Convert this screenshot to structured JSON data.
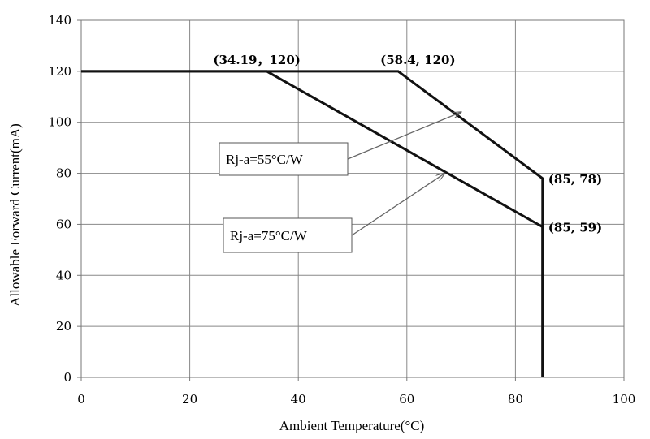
{
  "chart_data": {
    "type": "line",
    "xlabel": "Ambient Temperature(°C)",
    "ylabel": "Allowable Forward Current(mA)",
    "xlim": [
      0,
      100
    ],
    "ylim": [
      0,
      140
    ],
    "x_ticks": [
      "0",
      "20",
      "40",
      "60",
      "80",
      "100"
    ],
    "y_ticks": [
      "0",
      "20",
      "40",
      "60",
      "80",
      "100",
      "120",
      "140"
    ],
    "grid": true,
    "series": [
      {
        "name": "Rj-a=55°C/W",
        "points": [
          [
            0,
            120
          ],
          [
            58.4,
            120
          ],
          [
            85,
            78
          ],
          [
            85,
            0
          ]
        ]
      },
      {
        "name": "Rj-a=75°C/W",
        "points": [
          [
            0,
            120
          ],
          [
            34.19,
            120
          ],
          [
            85,
            59
          ],
          [
            85,
            0
          ]
        ]
      }
    ],
    "point_labels": [
      {
        "text": "(34.19，120)",
        "x": 34.19,
        "y": 120
      },
      {
        "text": "(58.4, 120)",
        "x": 58.4,
        "y": 120
      },
      {
        "text": "(85, 78)",
        "x": 85,
        "y": 78
      },
      {
        "text": "(85, 59)",
        "x": 85,
        "y": 59
      }
    ],
    "annotations": [
      {
        "text": "Rj-a=55°C/W",
        "arrow_to": [
          70,
          104
        ]
      },
      {
        "text": "Rj-a=75°C/W",
        "arrow_to": [
          67,
          80
        ]
      }
    ]
  }
}
